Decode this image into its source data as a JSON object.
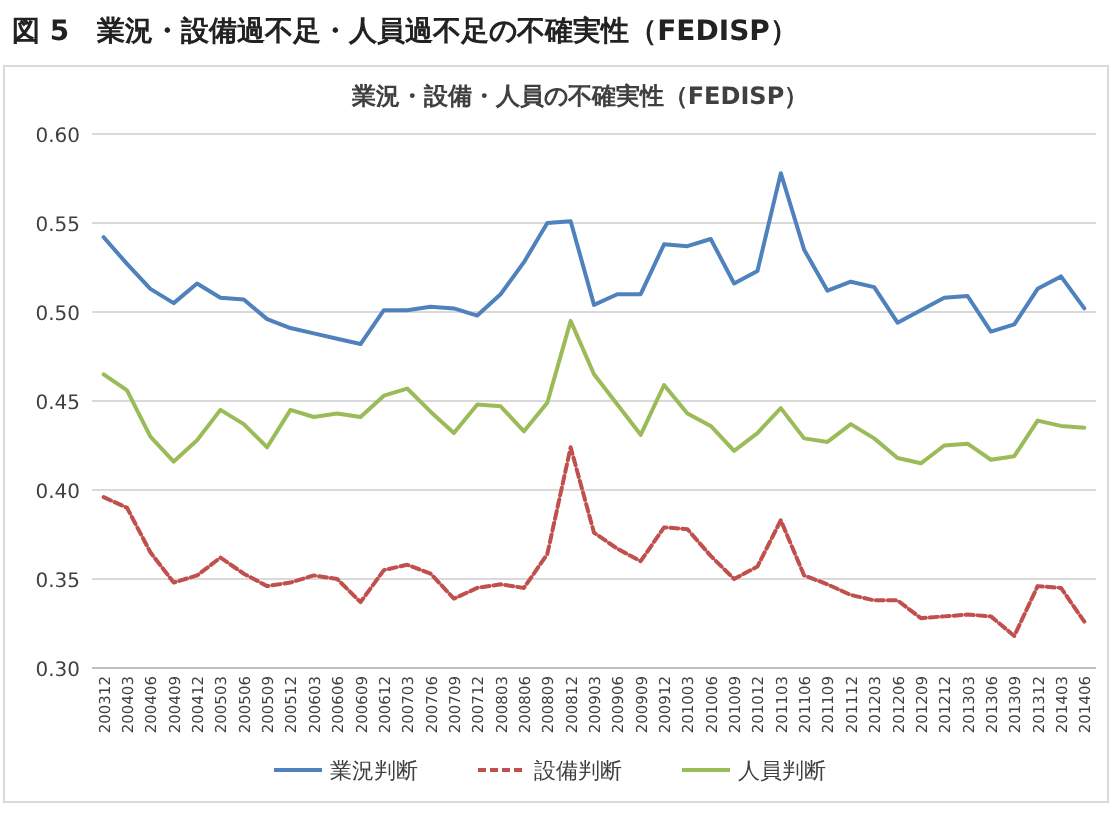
{
  "chart_data": {
    "type": "line",
    "title": "図 5　業況・設備過不足・人員過不足の不確実性（FEDISP）",
    "subtitle": "業況・設備・人員の不確実性（FEDISP）",
    "categories": [
      "200312",
      "200403",
      "200406",
      "200409",
      "200412",
      "200503",
      "200506",
      "200509",
      "200512",
      "200603",
      "200606",
      "200609",
      "200612",
      "200703",
      "200706",
      "200709",
      "200712",
      "200803",
      "200806",
      "200809",
      "200812",
      "200903",
      "200906",
      "200909",
      "200912",
      "201003",
      "201006",
      "201009",
      "201012",
      "201103",
      "201106",
      "201109",
      "201112",
      "201203",
      "201206",
      "201209",
      "201212",
      "201303",
      "201306",
      "201309",
      "201312",
      "201403",
      "201406"
    ],
    "series": [
      {
        "name": "業況判断",
        "color": "#4f81bd",
        "line_style": "solid",
        "values": [
          0.542,
          0.527,
          0.513,
          0.505,
          0.516,
          0.508,
          0.507,
          0.496,
          0.491,
          0.488,
          0.485,
          0.482,
          0.501,
          0.501,
          0.503,
          0.502,
          0.498,
          0.51,
          0.528,
          0.55,
          0.551,
          0.504,
          0.51,
          0.51,
          0.538,
          0.537,
          0.541,
          0.516,
          0.523,
          0.578,
          0.535,
          0.512,
          0.517,
          0.514,
          0.494,
          0.501,
          0.508,
          0.509,
          0.489,
          0.493,
          0.513,
          0.52,
          0.502
        ]
      },
      {
        "name": "設備判断",
        "color": "#c0504d",
        "line_style": "dashed",
        "values": [
          0.396,
          0.39,
          0.365,
          0.348,
          0.352,
          0.362,
          0.353,
          0.346,
          0.348,
          0.352,
          0.35,
          0.337,
          0.355,
          0.358,
          0.353,
          0.339,
          0.345,
          0.347,
          0.345,
          0.364,
          0.424,
          0.376,
          0.367,
          0.36,
          0.379,
          0.378,
          0.363,
          0.35,
          0.357,
          0.383,
          0.352,
          0.347,
          0.341,
          0.338,
          0.338,
          0.328,
          0.329,
          0.33,
          0.329,
          0.318,
          0.346,
          0.345,
          0.326
        ]
      },
      {
        "name": "人員判断",
        "color": "#9bbb59",
        "line_style": "solid",
        "values": [
          0.465,
          0.456,
          0.43,
          0.416,
          0.428,
          0.445,
          0.437,
          0.424,
          0.445,
          0.441,
          0.443,
          0.441,
          0.453,
          0.457,
          0.444,
          0.432,
          0.448,
          0.447,
          0.433,
          0.449,
          0.495,
          0.465,
          0.448,
          0.431,
          0.459,
          0.443,
          0.436,
          0.422,
          0.432,
          0.446,
          0.429,
          0.427,
          0.437,
          0.429,
          0.418,
          0.415,
          0.425,
          0.426,
          0.417,
          0.419,
          0.439,
          0.436,
          0.435
        ]
      }
    ],
    "ylim": [
      0.3,
      0.6
    ],
    "yticks": [
      {
        "value": 0.3,
        "label": "0.30"
      },
      {
        "value": 0.35,
        "label": "0.35"
      },
      {
        "value": 0.4,
        "label": "0.40"
      },
      {
        "value": 0.45,
        "label": "0.45"
      },
      {
        "value": 0.5,
        "label": "0.50"
      },
      {
        "value": 0.55,
        "label": "0.55"
      },
      {
        "value": 0.6,
        "label": "0.60"
      }
    ],
    "grid": "y",
    "legend": "bottom",
    "marker": "none"
  }
}
